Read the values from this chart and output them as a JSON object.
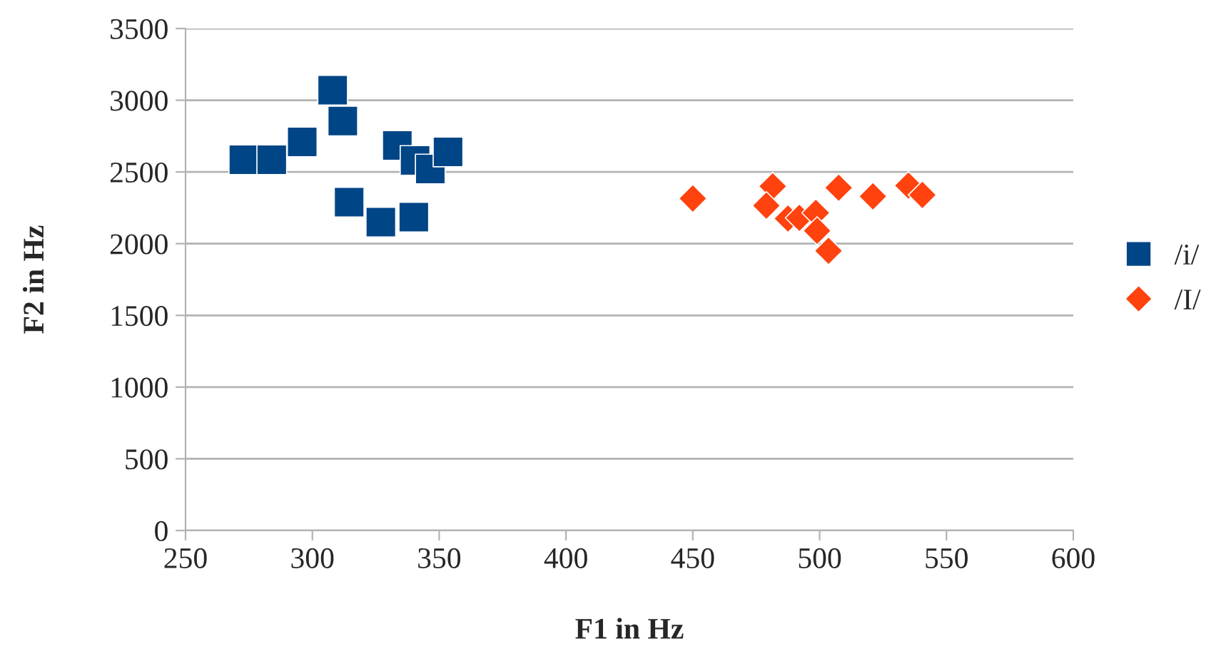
{
  "chart_data": {
    "type": "scatter",
    "xlabel": "F1 in Hz",
    "ylabel": "F2 in Hz",
    "xlim": [
      250,
      600
    ],
    "xticks": [
      250,
      300,
      350,
      400,
      450,
      500,
      550,
      600
    ],
    "ylim": [
      0,
      3500
    ],
    "yticks": [
      0,
      500,
      1000,
      1500,
      2000,
      2500,
      3000,
      3500
    ],
    "grid": "y",
    "legend": "right",
    "series": [
      {
        "name": "/i/",
        "color": "#004586",
        "marker": "square",
        "x": [
          273,
          284,
          296,
          308,
          312,
          333.5,
          340.5,
          346.5,
          353.5,
          314.5,
          327,
          340
        ],
        "values": [
          2585,
          2585,
          2710,
          3070,
          2855,
          2685,
          2580,
          2520,
          2640,
          2290,
          2150,
          2185
        ]
      },
      {
        "name": "/I/",
        "color": "#ff420e",
        "marker": "diamond",
        "x": [
          450,
          481.5,
          479,
          487.5,
          492,
          498.5,
          499,
          503.5,
          507.5,
          521,
          535,
          540.5
        ],
        "values": [
          2315,
          2400,
          2265,
          2175,
          2180,
          2215,
          2090,
          1950,
          2390,
          2330,
          2405,
          2340
        ]
      }
    ]
  }
}
